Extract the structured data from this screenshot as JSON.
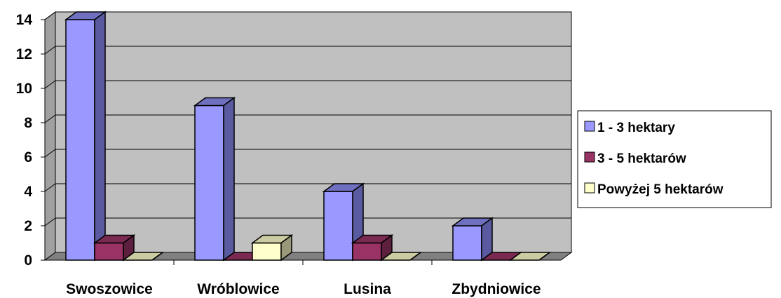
{
  "chart_data": {
    "type": "bar",
    "categories": [
      "Swoszowice",
      "Wróblowice",
      "Lusina",
      "Zbydniowice"
    ],
    "series": [
      {
        "name": "1 - 3 hektary",
        "values": [
          14,
          9,
          4,
          2
        ],
        "color": "#9999ff",
        "side_color": "#5a5aa0",
        "top_color": "#7070c0"
      },
      {
        "name": "3 - 5 hektarów",
        "values": [
          1,
          0,
          1,
          0
        ],
        "color": "#993366",
        "side_color": "#5c1f3d",
        "top_color": "#7a2951"
      },
      {
        "name": "Powyżej 5 hektarów",
        "values": [
          0,
          1,
          0,
          0
        ],
        "color": "#ffffcc",
        "side_color": "#99997a",
        "top_color": "#cccca3"
      }
    ],
    "y_ticks": [
      "0",
      "2",
      "4",
      "6",
      "8",
      "10",
      "12",
      "14"
    ],
    "ylim": [
      0,
      14
    ],
    "grid": true,
    "legend_position": "right",
    "plot_background": "#c0c0c0"
  }
}
